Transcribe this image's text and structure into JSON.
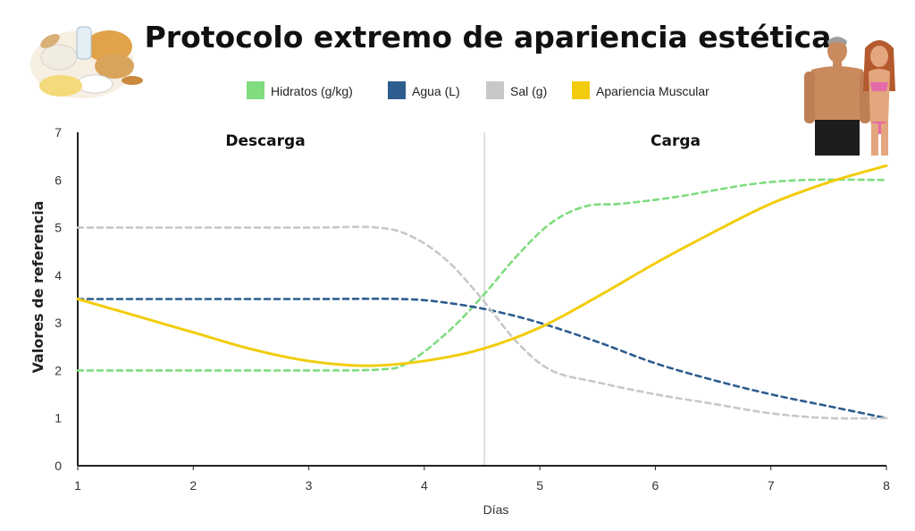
{
  "chart_data": {
    "type": "line",
    "title": "Protocolo extremo de apariencia estética",
    "xlabel": "Días",
    "ylabel": "Valores de referencia",
    "xlim": [
      1,
      8
    ],
    "ylim": [
      0,
      7
    ],
    "xticks": [
      1,
      2,
      3,
      4,
      5,
      6,
      7,
      8
    ],
    "yticks": [
      0,
      1,
      2,
      3,
      4,
      5,
      6,
      7
    ],
    "grid": false,
    "legend_position": "top",
    "divider_x": 4.52,
    "region_labels": [
      "Descarga",
      "Carga"
    ],
    "series": [
      {
        "name": "Hidratos (g/kg)",
        "color": "#7fdc7f",
        "style": "dashed",
        "x": [
          1,
          2,
          3,
          3.6,
          3.85,
          4.2,
          4.5,
          4.8,
          5.1,
          5.4,
          5.7,
          6.2,
          6.8,
          7.3,
          8
        ],
        "y": [
          2,
          2,
          2,
          2.02,
          2.15,
          2.8,
          3.55,
          4.4,
          5.1,
          5.45,
          5.5,
          5.65,
          5.9,
          6.0,
          6.0
        ]
      },
      {
        "name": "Agua (L)",
        "color": "#2e5d8f",
        "style": "dashed",
        "x": [
          1,
          2,
          3,
          3.8,
          4.2,
          4.6,
          5,
          5.5,
          6,
          6.5,
          7,
          7.5,
          8
        ],
        "y": [
          3.5,
          3.5,
          3.5,
          3.5,
          3.42,
          3.25,
          3.0,
          2.6,
          2.15,
          1.8,
          1.5,
          1.25,
          1.0
        ]
      },
      {
        "name": "Sal (g)",
        "color": "#c8c8c8",
        "style": "dashed",
        "x": [
          1,
          2,
          3,
          3.6,
          3.9,
          4.2,
          4.5,
          4.8,
          5.1,
          5.5,
          6,
          6.5,
          7,
          7.5,
          8
        ],
        "y": [
          5,
          5,
          5,
          5,
          4.8,
          4.3,
          3.5,
          2.6,
          2.0,
          1.75,
          1.5,
          1.3,
          1.1,
          1.0,
          1.0
        ]
      },
      {
        "name": "Apariencia Muscular",
        "color": "#f2cc0c",
        "style": "solid",
        "x": [
          1,
          1.5,
          2,
          2.5,
          3,
          3.5,
          4,
          4.5,
          5,
          5.5,
          6,
          6.5,
          7,
          7.5,
          8
        ],
        "y": [
          3.5,
          3.15,
          2.8,
          2.45,
          2.2,
          2.1,
          2.2,
          2.45,
          2.9,
          3.55,
          4.25,
          4.9,
          5.5,
          5.95,
          6.3
        ]
      }
    ]
  },
  "images": {
    "food_icon": "food-photo-icon",
    "couple_icon": "fitness-couple-photo-icon"
  }
}
